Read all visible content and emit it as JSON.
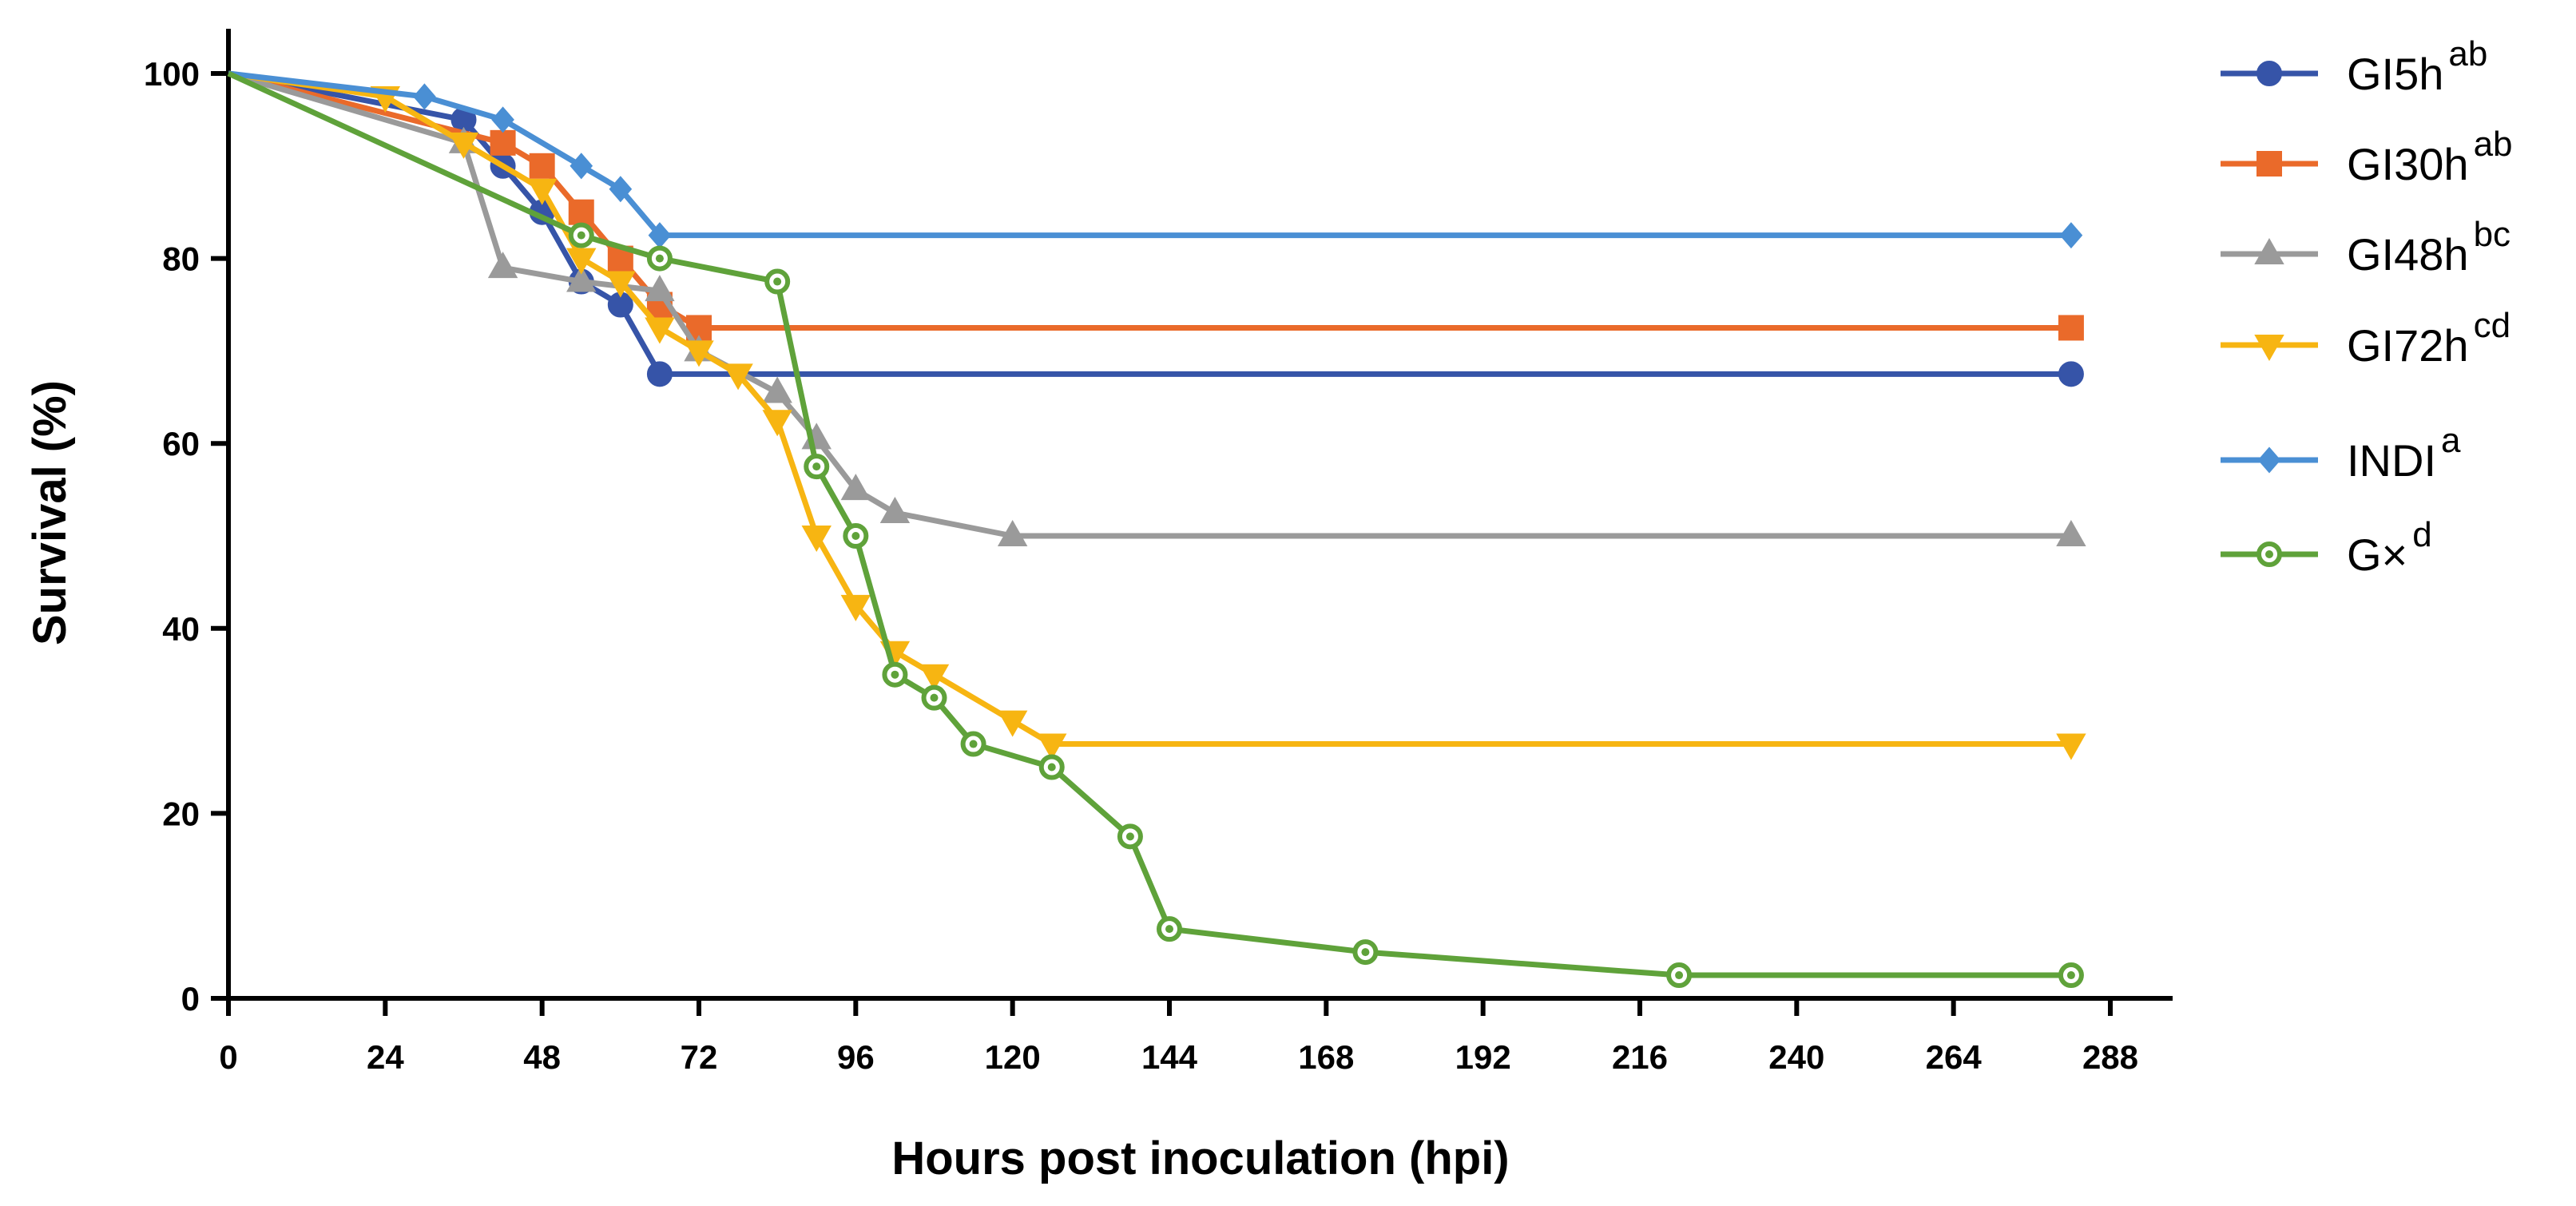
{
  "chart_data": {
    "type": "line",
    "title": "",
    "xlabel": "Hours post inoculation (hpi)",
    "ylabel": "Survival (%)",
    "xlim": [
      0,
      288
    ],
    "ylim": [
      0,
      100
    ],
    "x_ticks": [
      "0",
      "24",
      "48",
      "72",
      "96",
      "120",
      "144",
      "168",
      "192",
      "216",
      "240",
      "264",
      "288"
    ],
    "y_ticks": [
      "0",
      "20",
      "40",
      "60",
      "80",
      "100"
    ],
    "grid": false,
    "legend_position": "right",
    "series": [
      {
        "name": "GI5h",
        "sup": "ab",
        "color": "#3654a8",
        "marker": "circle",
        "marker_fill": "filled",
        "points": [
          [
            0,
            100
          ],
          [
            36,
            95
          ],
          [
            42,
            90
          ],
          [
            48,
            85
          ],
          [
            54,
            77.5
          ],
          [
            60,
            75
          ],
          [
            66,
            67.5
          ],
          [
            282,
            67.5
          ]
        ]
      },
      {
        "name": "GI30h",
        "sup": "ab",
        "color": "#ea6a2a",
        "marker": "square",
        "marker_fill": "filled",
        "points": [
          [
            0,
            100
          ],
          [
            42,
            92.5
          ],
          [
            48,
            90
          ],
          [
            54,
            85
          ],
          [
            60,
            80
          ],
          [
            66,
            75
          ],
          [
            72,
            72.5
          ],
          [
            282,
            72.5
          ]
        ]
      },
      {
        "name": "GI48h",
        "sup": "bc",
        "color": "#9a9a9a",
        "marker": "triangle-up",
        "marker_fill": "filled",
        "points": [
          [
            0,
            100
          ],
          [
            36,
            92.5
          ],
          [
            42,
            79
          ],
          [
            54,
            77.5
          ],
          [
            66,
            76.5
          ],
          [
            72,
            70
          ],
          [
            84,
            65.5
          ],
          [
            90,
            60.5
          ],
          [
            96,
            55
          ],
          [
            102,
            52.5
          ],
          [
            120,
            50
          ],
          [
            282,
            50
          ]
        ]
      },
      {
        "name": "GI72h",
        "sup": "cd",
        "color": "#f7b512",
        "marker": "triangle-down",
        "marker_fill": "filled",
        "points": [
          [
            0,
            100
          ],
          [
            24,
            97.5
          ],
          [
            36,
            92.5
          ],
          [
            48,
            87.5
          ],
          [
            54,
            80
          ],
          [
            60,
            77.5
          ],
          [
            66,
            72.5
          ],
          [
            72,
            70
          ],
          [
            78,
            67.5
          ],
          [
            84,
            62.5
          ],
          [
            90,
            50
          ],
          [
            96,
            42.5
          ],
          [
            102,
            37.5
          ],
          [
            108,
            35
          ],
          [
            120,
            30
          ],
          [
            126,
            27.5
          ],
          [
            282,
            27.5
          ]
        ]
      },
      {
        "name": "INDI",
        "sup": "a",
        "color": "#4a8fd4",
        "marker": "diamond",
        "marker_fill": "filled",
        "points": [
          [
            0,
            100
          ],
          [
            30,
            97.5
          ],
          [
            42,
            95
          ],
          [
            54,
            90
          ],
          [
            60,
            87.5
          ],
          [
            66,
            82.5
          ],
          [
            282,
            82.5
          ]
        ]
      },
      {
        "name": "G×",
        "sup": "d",
        "color": "#5fa23a",
        "marker": "circle",
        "marker_fill": "open",
        "points": [
          [
            0,
            100
          ],
          [
            54,
            82.5
          ],
          [
            66,
            80
          ],
          [
            84,
            77.5
          ],
          [
            90,
            57.5
          ],
          [
            96,
            50
          ],
          [
            102,
            35
          ],
          [
            108,
            32.5
          ],
          [
            114,
            27.5
          ],
          [
            126,
            25
          ],
          [
            138,
            17.5
          ],
          [
            144,
            7.5
          ],
          [
            174,
            5
          ],
          [
            222,
            2.5
          ],
          [
            282,
            2.5
          ]
        ]
      }
    ]
  }
}
